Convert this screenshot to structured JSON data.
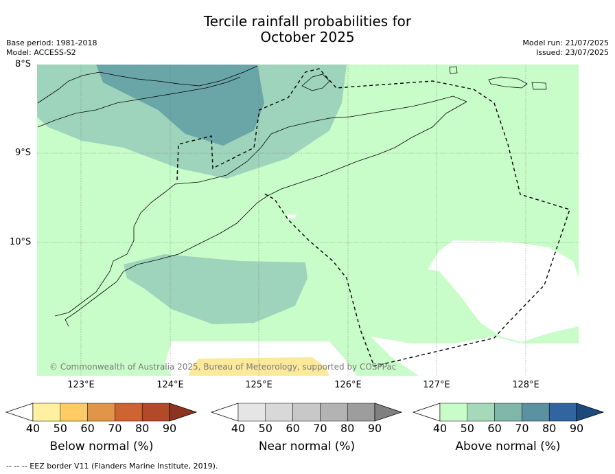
{
  "title_line1": "Tercile rainfall probabilities for",
  "title_line2": "October 2025",
  "base_period": "Base period: 1981-2018",
  "model": "Model: ACCESS-S2",
  "model_run": "Model run: 21/07/2025",
  "issued": "Issued: 23/07/2025",
  "copyright": "© Commonwealth of Australia 2025, Bureau of Meteorology, supported by COSPPac",
  "footnote": "--  --  -- EEZ border V11 (Flanders Marine Institute, 2019).",
  "lat_labels": [
    "8°S",
    "9°S",
    "10°S"
  ],
  "lon_labels": [
    "123°E",
    "124°E",
    "125°E",
    "126°E",
    "127°E",
    "128°E"
  ],
  "colorbars": [
    {
      "title": "Below normal (%)",
      "ticks": [
        "40",
        "50",
        "60",
        "70",
        "80",
        "90"
      ],
      "colors": [
        "#fff1a0",
        "#fecb66",
        "#e19549",
        "#cd6432",
        "#b24a29",
        "#8d3320"
      ]
    },
    {
      "title": "Near normal (%)",
      "ticks": [
        "40",
        "50",
        "60",
        "70",
        "80",
        "90"
      ],
      "colors": [
        "#e5e5e5",
        "#d8d8d8",
        "#c8c8c8",
        "#b3b3b3",
        "#9d9d9d",
        "#808080"
      ]
    },
    {
      "title": "Above normal (%)",
      "ticks": [
        "40",
        "50",
        "60",
        "70",
        "80",
        "90"
      ],
      "colors": [
        "#c8fcc8",
        "#a6d9ba",
        "#80b7aa",
        "#5b91a0",
        "#3265a0",
        "#1d4a7c"
      ]
    }
  ],
  "chart_data": {
    "type": "heatmap",
    "title": "Tercile rainfall probabilities for October 2025",
    "x_range": [
      122.5,
      128.6
    ],
    "y_range": [
      -11.5,
      -8.0
    ],
    "xticks": [
      123,
      124,
      125,
      126,
      127,
      128
    ],
    "yticks": [
      -8,
      -9,
      -10
    ],
    "grid": true,
    "categories": [
      "Below normal (%)",
      "Near normal (%)",
      "Above normal (%)"
    ],
    "levels": [
      40,
      50,
      60,
      70,
      80,
      90
    ],
    "dominant_category": "Above normal (%)",
    "max_level": "60-70"
  }
}
